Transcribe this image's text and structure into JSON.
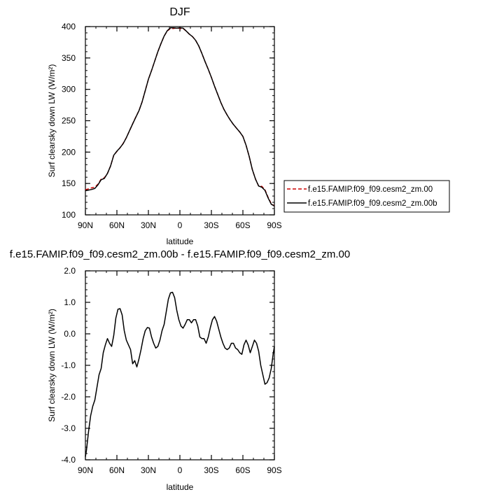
{
  "chart_data": [
    {
      "type": "line",
      "title": "DJF",
      "xlabel": "latitude",
      "ylabel": "Surf clearsky down LW (W/m²)",
      "xlim": [
        90,
        -90
      ],
      "ylim": [
        100,
        400
      ],
      "xticks": [
        90,
        60,
        30,
        0,
        -30,
        -60,
        -90
      ],
      "xticklabels": [
        "90N",
        "60N",
        "30N",
        "0",
        "30S",
        "60S",
        "90S"
      ],
      "yticks": [
        100,
        150,
        200,
        250,
        300,
        350,
        400
      ],
      "yticklabels": [
        "100",
        "150",
        "200",
        "250",
        "300",
        "350",
        "400"
      ],
      "legend_position": "right",
      "series": [
        {
          "name": "f.e15.FAMIP.f09_f09.cesm2_zm.00",
          "color": "#cc0000",
          "dashed": true,
          "x": [
            90,
            87,
            84,
            81,
            78,
            75,
            72,
            69,
            66,
            63,
            60,
            57,
            54,
            51,
            48,
            45,
            42,
            39,
            36,
            33,
            30,
            27,
            24,
            21,
            18,
            15,
            12,
            9,
            6,
            3,
            0,
            -3,
            -6,
            -9,
            -12,
            -15,
            -18,
            -21,
            -24,
            -27,
            -30,
            -33,
            -36,
            -39,
            -42,
            -45,
            -48,
            -51,
            -54,
            -57,
            -60,
            -63,
            -66,
            -69,
            -72,
            -75,
            -78,
            -81,
            -84,
            -87,
            -90
          ],
          "y": [
            140,
            141.5,
            143,
            144,
            149,
            157,
            159,
            166,
            178,
            195,
            201,
            207,
            214,
            223,
            234,
            245,
            256,
            266,
            280,
            298,
            316,
            330,
            345,
            360,
            373,
            385,
            393,
            397,
            397,
            398,
            397,
            397,
            393,
            388,
            384,
            378,
            369,
            357,
            344,
            332,
            319,
            305,
            292,
            279,
            268,
            259,
            251,
            244,
            238,
            232,
            225,
            211,
            193,
            172,
            157,
            146,
            145.5,
            140,
            128,
            118,
            114
          ]
        },
        {
          "name": "f.e15.FAMIP.f09_f09.cesm2_zm.00b",
          "color": "#000000",
          "dashed": false,
          "x": [
            90,
            87,
            84,
            81,
            78,
            75,
            72,
            69,
            66,
            63,
            60,
            57,
            54,
            51,
            48,
            45,
            42,
            39,
            36,
            33,
            30,
            27,
            24,
            21,
            18,
            15,
            12,
            9,
            6,
            3,
            0,
            -3,
            -6,
            -9,
            -12,
            -15,
            -18,
            -21,
            -24,
            -27,
            -30,
            -33,
            -36,
            -39,
            -42,
            -45,
            -48,
            -51,
            -54,
            -57,
            -60,
            -63,
            -66,
            -69,
            -72,
            -75,
            -78,
            -81,
            -84,
            -87,
            -90
          ],
          "y": [
            138.5,
            139.5,
            140.5,
            142,
            148,
            156,
            158,
            166,
            178,
            195,
            201.5,
            207,
            213.5,
            223,
            234,
            245,
            255.5,
            266,
            280,
            298,
            316,
            330,
            345,
            360,
            373,
            385,
            393.5,
            398,
            398,
            397.5,
            398,
            397.5,
            393,
            388,
            384,
            378,
            369,
            357,
            344,
            332,
            319,
            305,
            292,
            279,
            268,
            259,
            251,
            244,
            238,
            232,
            225,
            211,
            193,
            172,
            157,
            146,
            144,
            139,
            127,
            117,
            114
          ]
        }
      ]
    },
    {
      "type": "line",
      "title": "f.e15.FAMIP.f09_f09.cesm2_zm.00b - f.e15.FAMIP.f09_f09.cesm2_zm.00",
      "xlabel": "latitude",
      "ylabel": "Surf clearsky down LW (W/m²)",
      "xlim": [
        90,
        -90
      ],
      "ylim": [
        -4.0,
        2.0
      ],
      "xticks": [
        90,
        60,
        30,
        0,
        -30,
        -60,
        -90
      ],
      "xticklabels": [
        "90N",
        "60N",
        "30N",
        "0",
        "30S",
        "60S",
        "90S"
      ],
      "yticks": [
        -4,
        -3,
        -2,
        -1,
        0,
        1,
        2
      ],
      "yticklabels": [
        "-4.0",
        "-3.0",
        "-2.0",
        "-1.0",
        "0.0",
        "1.0",
        "2.0"
      ],
      "series": [
        {
          "color": "#000000",
          "x": [
            90,
            89,
            87,
            85,
            83,
            81,
            79,
            77,
            75,
            73,
            71,
            69,
            67,
            65,
            63,
            61,
            59,
            57,
            55,
            53,
            51,
            49,
            47,
            45,
            43,
            41,
            39,
            37,
            35,
            33,
            31,
            29,
            27,
            25,
            23,
            21,
            19,
            17,
            15,
            13,
            11,
            9,
            7,
            5,
            3,
            1,
            -1,
            -3,
            -5,
            -7,
            -9,
            -11,
            -13,
            -15,
            -17,
            -19,
            -21,
            -23,
            -25,
            -27,
            -29,
            -31,
            -33,
            -35,
            -37,
            -39,
            -41,
            -43,
            -45,
            -47,
            -49,
            -51,
            -53,
            -55,
            -57,
            -59,
            -61,
            -63,
            -65,
            -67,
            -69,
            -71,
            -73,
            -75,
            -77,
            -79,
            -81,
            -83,
            -85,
            -87,
            -89,
            -90
          ],
          "y": [
            -3.9,
            -3.7,
            -3.1,
            -2.6,
            -2.3,
            -2.1,
            -1.7,
            -1.3,
            -1.1,
            -0.6,
            -0.35,
            -0.15,
            -0.3,
            -0.4,
            -0.05,
            0.5,
            0.78,
            0.8,
            0.6,
            0.1,
            -0.2,
            -0.35,
            -0.5,
            -0.95,
            -0.85,
            -1.05,
            -0.8,
            -0.5,
            -0.15,
            0.1,
            0.2,
            0.18,
            -0.1,
            -0.3,
            -0.45,
            -0.4,
            -0.2,
            0.1,
            0.3,
            0.7,
            1.1,
            1.3,
            1.32,
            1.15,
            0.75,
            0.45,
            0.25,
            0.18,
            0.3,
            0.45,
            0.45,
            0.35,
            0.45,
            0.45,
            0.25,
            -0.1,
            -0.15,
            -0.15,
            -0.3,
            -0.1,
            0.2,
            0.45,
            0.55,
            0.4,
            0.15,
            -0.1,
            -0.3,
            -0.45,
            -0.5,
            -0.45,
            -0.3,
            -0.3,
            -0.45,
            -0.5,
            -0.6,
            -0.65,
            -0.35,
            -0.2,
            -0.35,
            -0.6,
            -0.4,
            -0.2,
            -0.3,
            -0.55,
            -1.0,
            -1.3,
            -1.6,
            -1.55,
            -1.4,
            -1.1,
            -0.6,
            -0.4
          ]
        }
      ]
    }
  ]
}
